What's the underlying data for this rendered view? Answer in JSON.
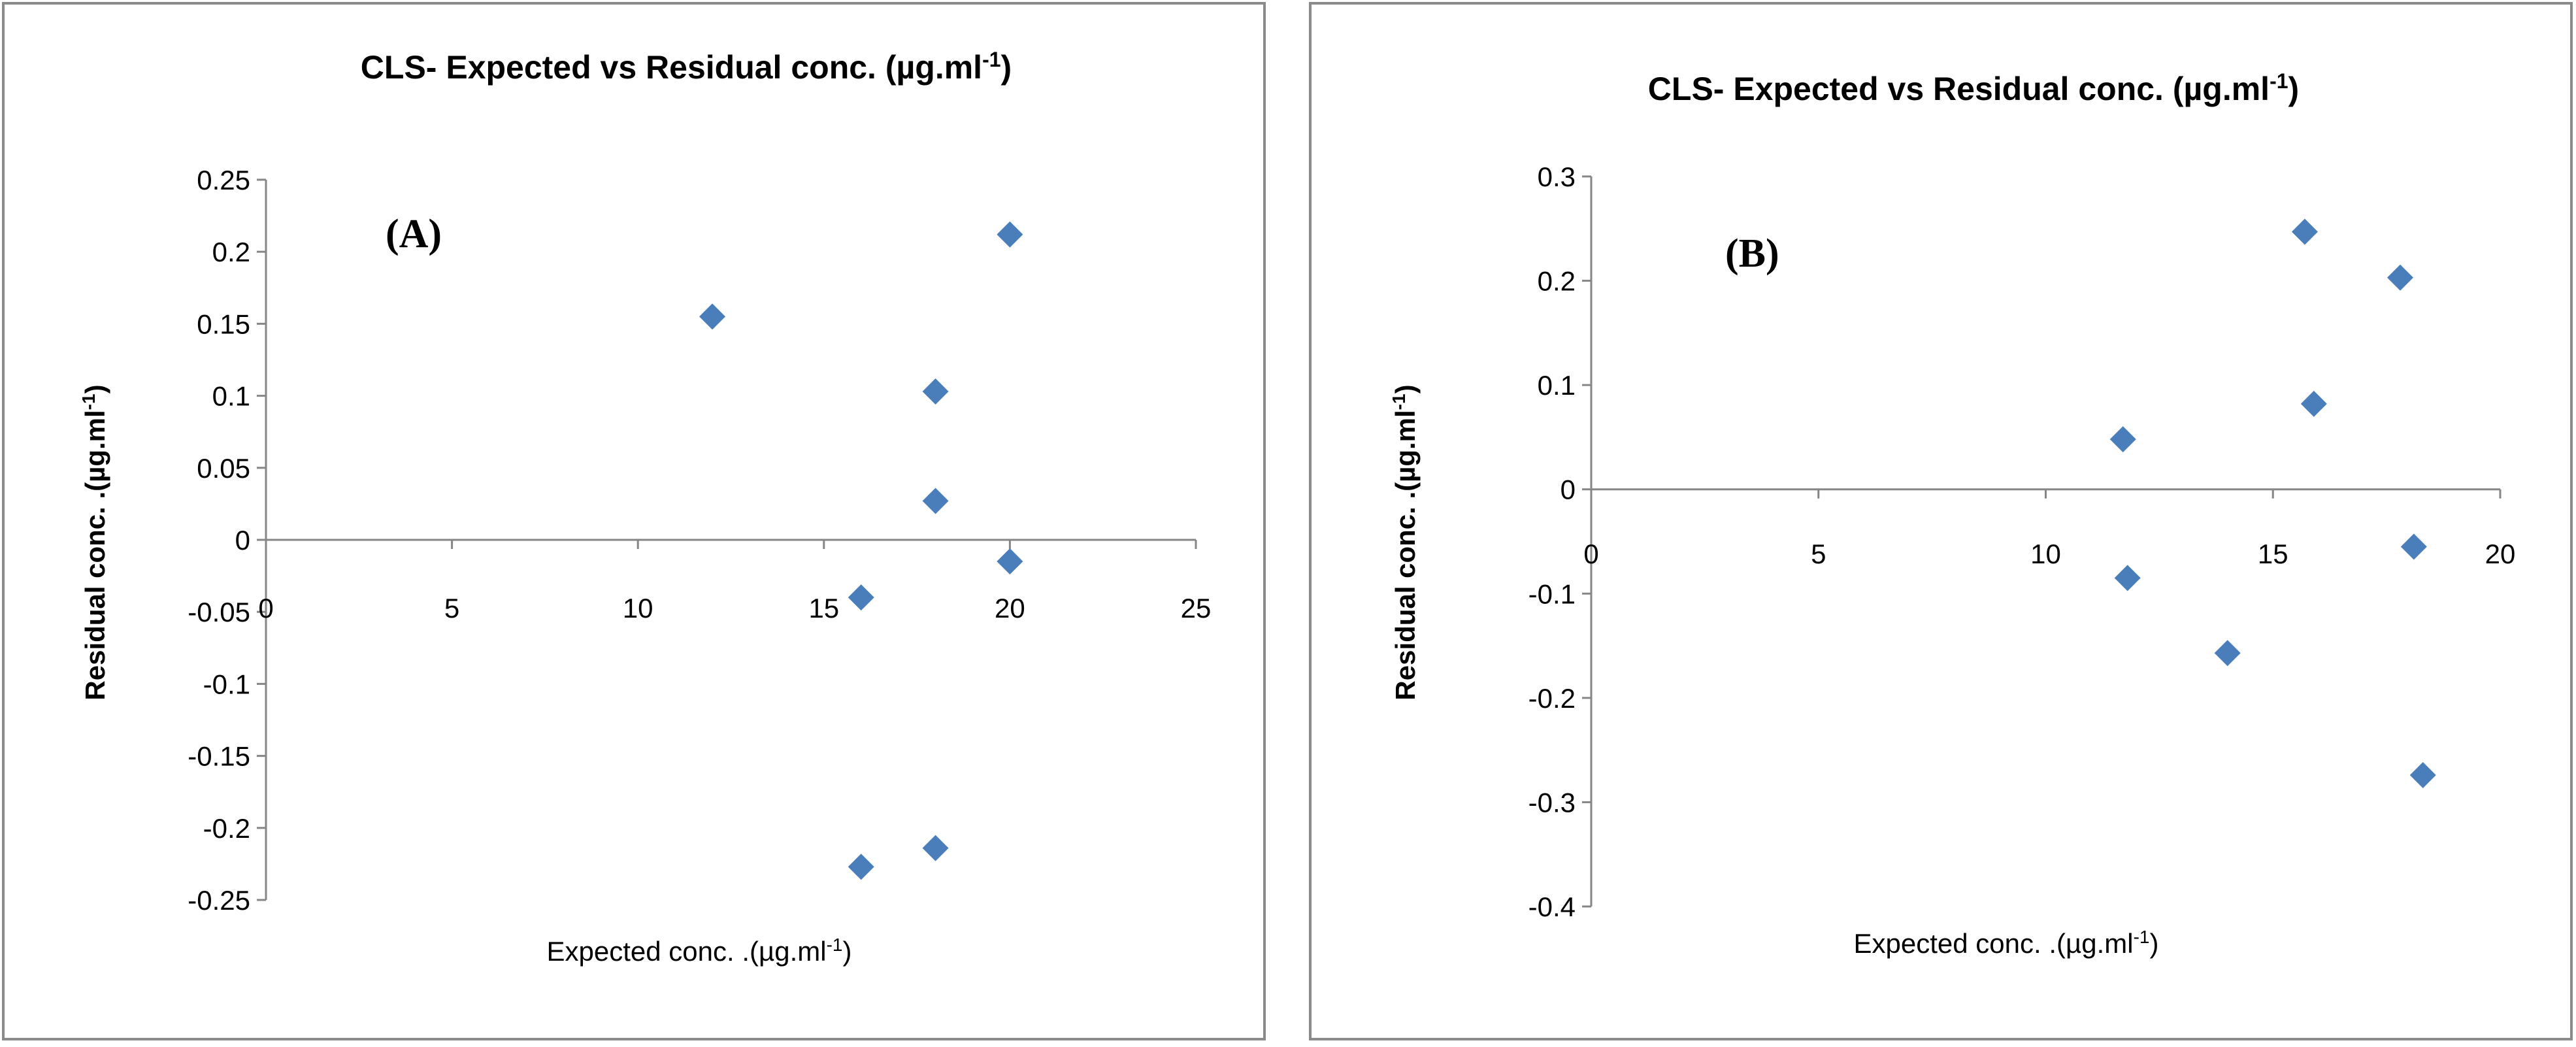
{
  "chart_data": [
    {
      "type": "scatter",
      "title": "CLS- Expected vs Residual conc. (µg.ml",
      "title_superscript": "-1",
      "title_close": ")",
      "panel_label": "(A)",
      "xlabel": "Expected conc. .(µg.ml",
      "xlabel_superscript": "-1",
      "xlabel_close": ")",
      "ylabel": "Residual conc. .(µg.ml",
      "ylabel_superscript": "-1",
      "ylabel_close": ")",
      "xlim": [
        0,
        25
      ],
      "ylim": [
        -0.25,
        0.25
      ],
      "x_ticks": [
        "0",
        "5",
        "10",
        "15",
        "20",
        "25"
      ],
      "y_ticks": [
        "0.25",
        "0.2",
        "0.15",
        "0.1",
        "0.05",
        "0",
        "-0.05",
        "-0.1",
        "-0.15",
        "-0.2",
        "-0.25"
      ],
      "marker": "diamond",
      "marker_color": "#4a7ebb",
      "grid": false,
      "points": [
        {
          "x": 12,
          "y": 0.155
        },
        {
          "x": 16,
          "y": -0.04
        },
        {
          "x": 16,
          "y": -0.227
        },
        {
          "x": 18,
          "y": 0.103
        },
        {
          "x": 18,
          "y": 0.027
        },
        {
          "x": 18,
          "y": -0.214
        },
        {
          "x": 20,
          "y": 0.212
        },
        {
          "x": 20,
          "y": -0.015
        }
      ]
    },
    {
      "type": "scatter",
      "title": "CLS- Expected vs Residual conc. (µg.ml",
      "title_superscript": "-1",
      "title_close": ")",
      "panel_label": "(B)",
      "xlabel": "Expected conc. .(µg.ml",
      "xlabel_superscript": "-1",
      "xlabel_close": ")",
      "ylabel": "Residual conc. .(µg.ml",
      "ylabel_superscript": "-1",
      "ylabel_close": ")",
      "xlim": [
        0,
        20
      ],
      "ylim": [
        -0.4,
        0.3
      ],
      "x_ticks": [
        "0",
        "5",
        "10",
        "15",
        "20"
      ],
      "y_ticks": [
        "0.3",
        "0.2",
        "0.1",
        "0",
        "-0.1",
        "-0.2",
        "-0.3",
        "-0.4"
      ],
      "marker": "diamond",
      "marker_color": "#4a7ebb",
      "grid": false,
      "points": [
        {
          "x": 11.7,
          "y": 0.048
        },
        {
          "x": 11.8,
          "y": -0.085
        },
        {
          "x": 14.0,
          "y": -0.157
        },
        {
          "x": 15.7,
          "y": 0.247
        },
        {
          "x": 15.9,
          "y": 0.082
        },
        {
          "x": 17.8,
          "y": 0.203
        },
        {
          "x": 18.1,
          "y": -0.055
        },
        {
          "x": 18.3,
          "y": -0.274
        }
      ]
    }
  ]
}
